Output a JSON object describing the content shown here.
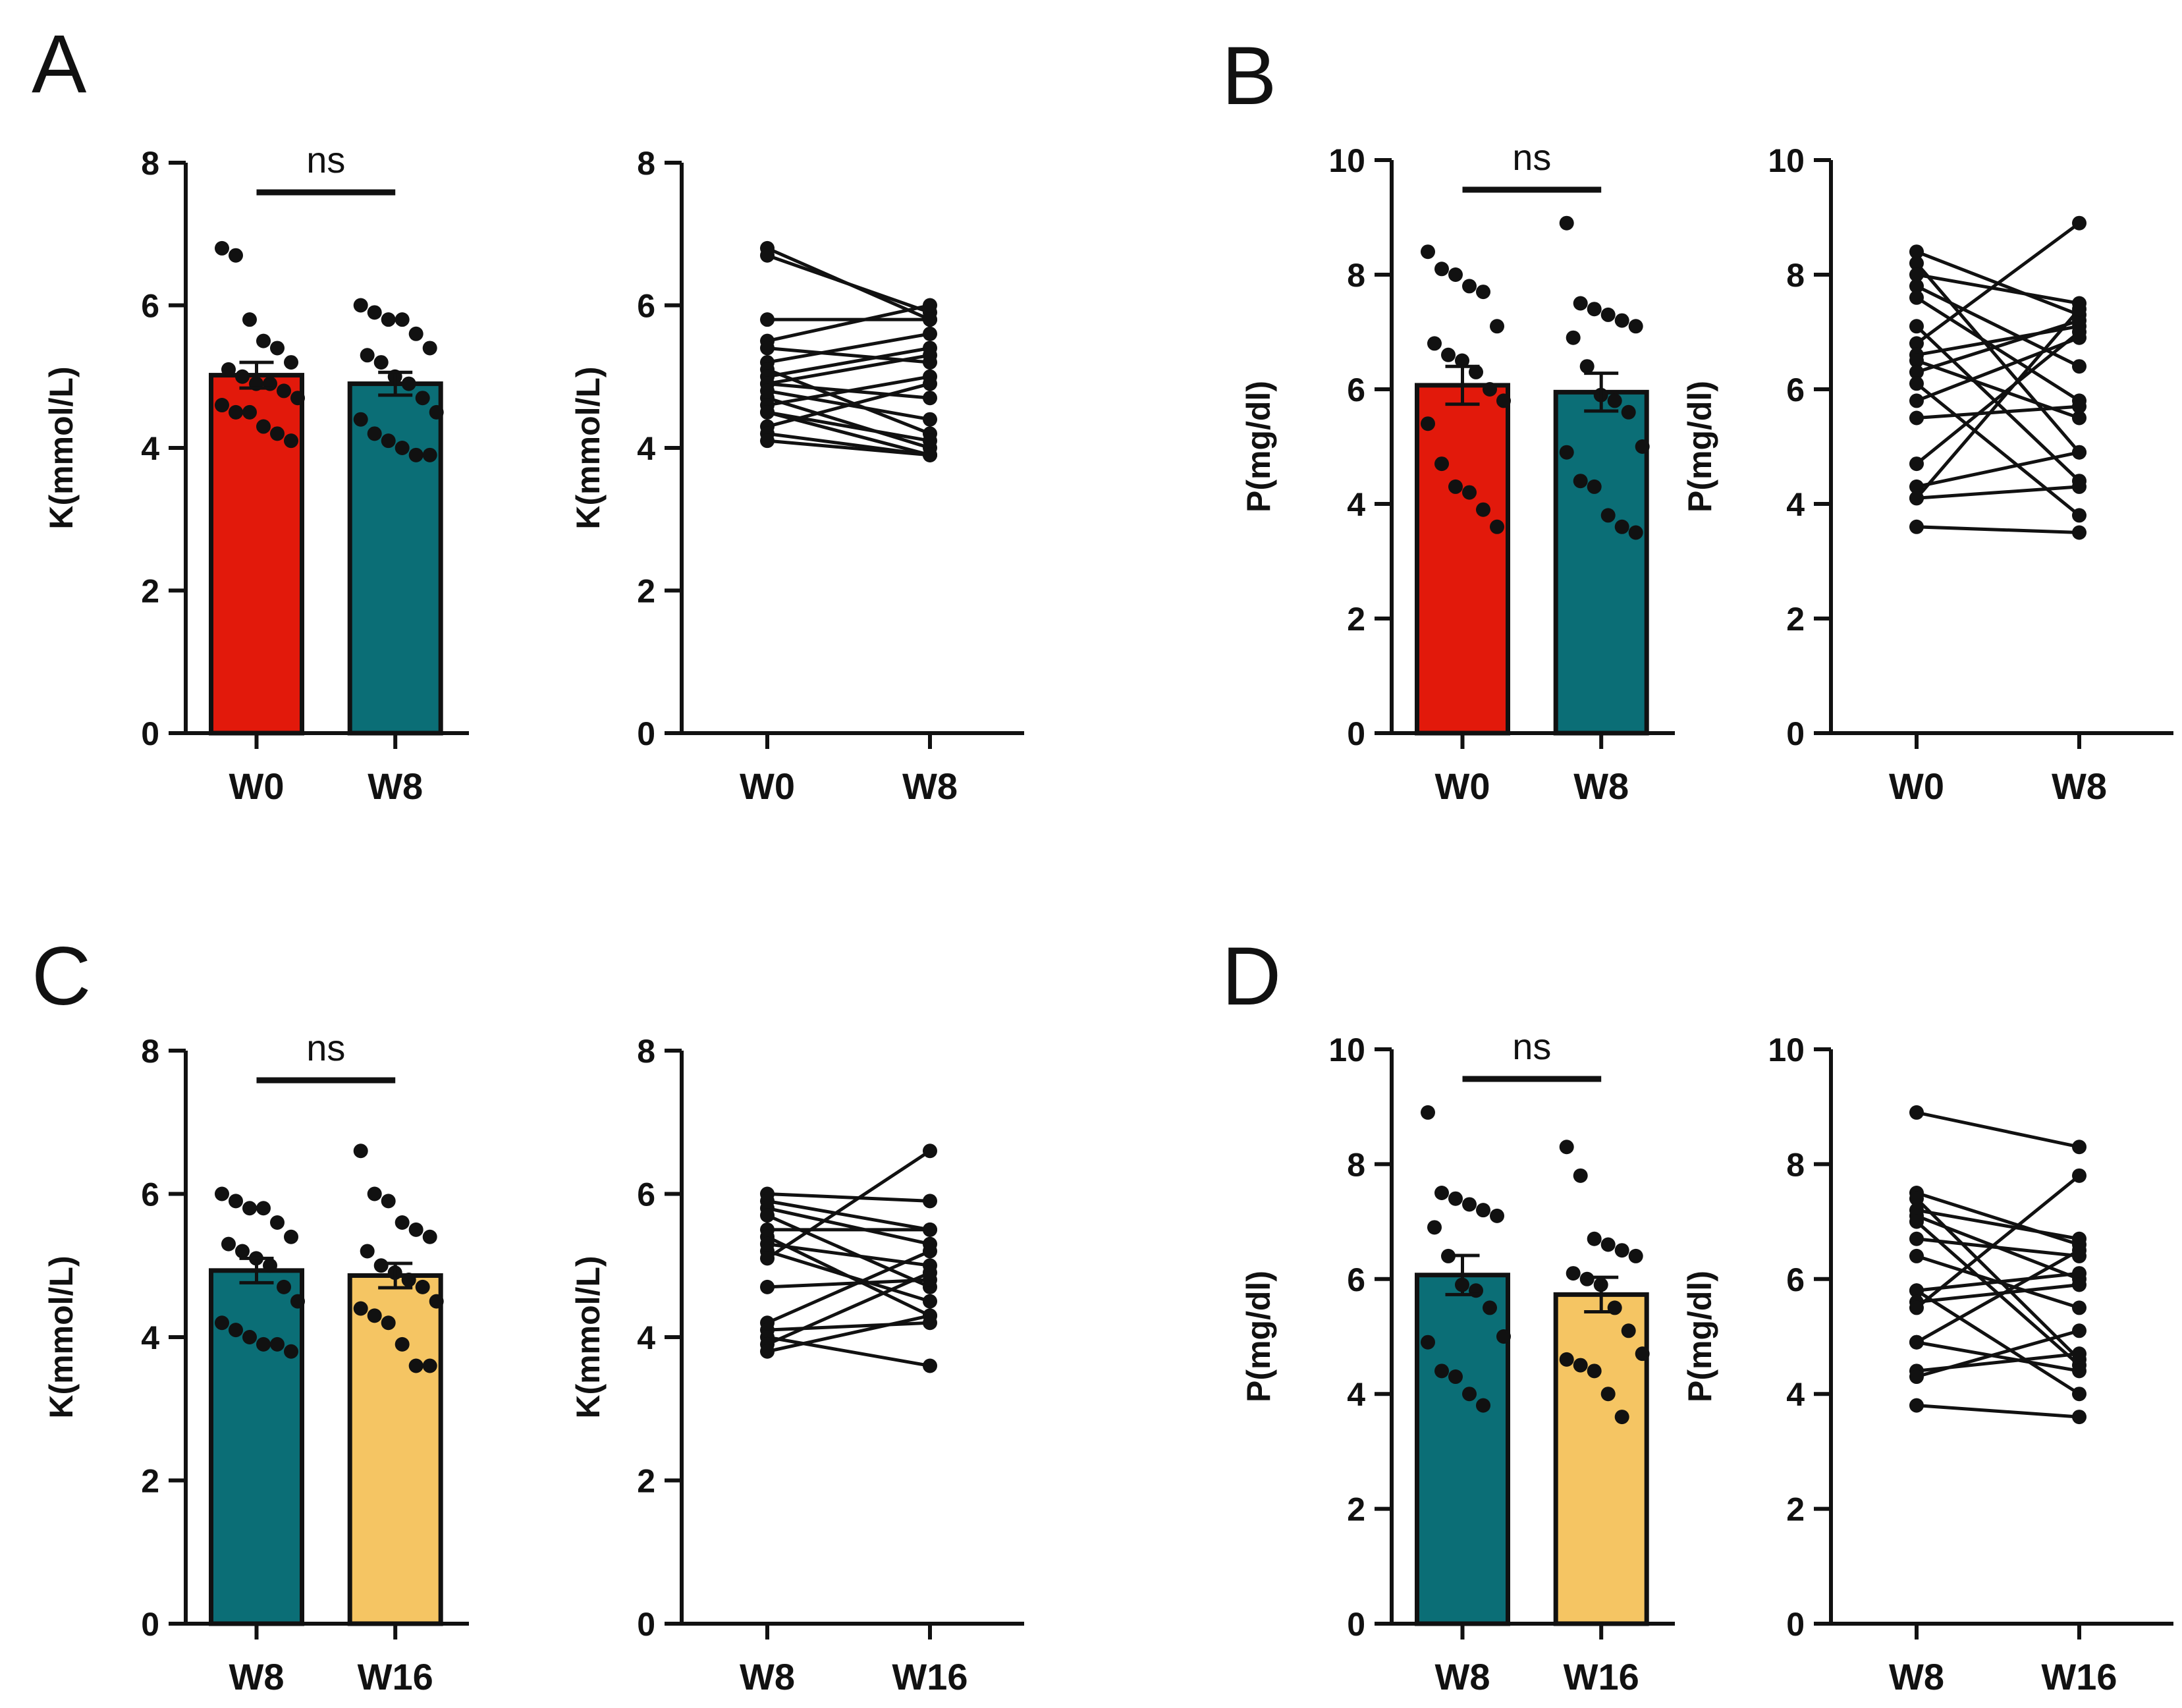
{
  "colors": {
    "red": "#e2190b",
    "teal": "#0b6e76",
    "yellow": "#f5c563",
    "ink": "#111111"
  },
  "chart_data": [
    {
      "panel": "A",
      "type": "bar",
      "ylabel": "K(mmol/L)",
      "categories": [
        "W0",
        "W8"
      ],
      "bar_colors": [
        "red",
        "teal"
      ],
      "ylim": [
        0,
        8
      ],
      "yticks": [
        0,
        2,
        4,
        6,
        8
      ],
      "means": [
        5.02,
        4.9
      ],
      "sem": [
        0.18,
        0.16
      ],
      "significance": "ns",
      "points": [
        [
          6.8,
          6.7,
          5.8,
          5.5,
          5.4,
          5.2,
          5.1,
          5.0,
          4.9,
          4.9,
          4.8,
          4.7,
          4.6,
          4.5,
          4.5,
          4.3,
          4.2,
          4.1
        ],
        [
          6.0,
          5.9,
          5.8,
          5.8,
          5.6,
          5.4,
          5.3,
          5.2,
          5.0,
          4.9,
          4.7,
          4.5,
          4.4,
          4.2,
          4.1,
          4.0,
          3.9,
          3.9
        ]
      ]
    },
    {
      "panel": "A",
      "type": "line",
      "ylabel": "K(mmol/L)",
      "categories": [
        "W0",
        "W8"
      ],
      "ylim": [
        0,
        8
      ],
      "yticks": [
        0,
        2,
        4,
        6,
        8
      ],
      "pairs": [
        [
          6.8,
          5.8
        ],
        [
          6.7,
          5.9
        ],
        [
          5.8,
          5.8
        ],
        [
          5.5,
          6.0
        ],
        [
          5.4,
          5.2
        ],
        [
          5.2,
          5.6
        ],
        [
          5.1,
          4.2
        ],
        [
          5.0,
          5.4
        ],
        [
          4.9,
          4.7
        ],
        [
          4.9,
          5.3
        ],
        [
          4.8,
          4.4
        ],
        [
          4.7,
          4.0
        ],
        [
          4.6,
          5.0
        ],
        [
          4.5,
          4.1
        ],
        [
          4.5,
          3.9
        ],
        [
          4.3,
          4.9
        ],
        [
          4.2,
          3.9
        ],
        [
          4.1,
          3.9
        ]
      ]
    },
    {
      "panel": "B",
      "type": "bar",
      "ylabel": "P(mg/dl)",
      "categories": [
        "W0",
        "W8"
      ],
      "bar_colors": [
        "red",
        "teal"
      ],
      "ylim": [
        0,
        10
      ],
      "yticks": [
        0,
        2,
        4,
        6,
        8,
        10
      ],
      "means": [
        6.07,
        5.95
      ],
      "sem": [
        0.33,
        0.33
      ],
      "significance": "ns",
      "points": [
        [
          8.4,
          8.1,
          8.0,
          7.8,
          7.7,
          7.1,
          6.8,
          6.6,
          6.5,
          6.3,
          6.0,
          5.8,
          5.4,
          4.7,
          4.3,
          4.2,
          3.9,
          3.6
        ],
        [
          8.9,
          7.5,
          7.4,
          7.3,
          7.2,
          7.1,
          6.9,
          6.4,
          5.9,
          5.8,
          5.6,
          5.0,
          4.9,
          4.4,
          4.3,
          3.8,
          3.6,
          3.5
        ]
      ]
    },
    {
      "panel": "B",
      "type": "line",
      "ylabel": "P(mg/dl)",
      "categories": [
        "W0",
        "W8"
      ],
      "ylim": [
        0,
        10
      ],
      "yticks": [
        0,
        2,
        4,
        6,
        8,
        10
      ],
      "pairs": [
        [
          8.4,
          7.3
        ],
        [
          8.2,
          4.9
        ],
        [
          8.0,
          7.5
        ],
        [
          7.8,
          6.4
        ],
        [
          7.6,
          5.8
        ],
        [
          7.1,
          4.4
        ],
        [
          6.8,
          8.9
        ],
        [
          6.6,
          7.1
        ],
        [
          6.5,
          5.5
        ],
        [
          6.3,
          7.2
        ],
        [
          6.1,
          3.8
        ],
        [
          5.8,
          6.9
        ],
        [
          5.5,
          5.7
        ],
        [
          4.7,
          7.0
        ],
        [
          4.3,
          4.9
        ],
        [
          4.1,
          7.4
        ],
        [
          4.1,
          4.3
        ],
        [
          3.6,
          3.5
        ]
      ]
    },
    {
      "panel": "C",
      "type": "bar",
      "ylabel": "K(mmol/L)",
      "categories": [
        "W8",
        "W16"
      ],
      "bar_colors": [
        "teal",
        "yellow"
      ],
      "ylim": [
        0,
        8
      ],
      "yticks": [
        0,
        2,
        4,
        6,
        8
      ],
      "means": [
        4.93,
        4.86
      ],
      "sem": [
        0.17,
        0.17
      ],
      "significance": "ns",
      "points": [
        [
          6.0,
          5.9,
          5.8,
          5.8,
          5.6,
          5.4,
          5.3,
          5.2,
          5.1,
          5.0,
          4.7,
          4.5,
          4.2,
          4.1,
          4.0,
          3.9,
          3.9,
          3.8
        ],
        [
          6.6,
          6.0,
          5.9,
          5.6,
          5.5,
          5.4,
          5.2,
          5.0,
          4.9,
          4.8,
          4.7,
          4.5,
          4.4,
          4.3,
          4.2,
          3.9,
          3.6,
          3.6
        ]
      ]
    },
    {
      "panel": "C",
      "type": "line",
      "ylabel": "K(mmol/L)",
      "categories": [
        "W8",
        "W16"
      ],
      "ylim": [
        0,
        8
      ],
      "yticks": [
        0,
        2,
        4,
        6,
        8
      ],
      "pairs": [
        [
          6.0,
          5.9
        ],
        [
          5.9,
          5.5
        ],
        [
          5.8,
          5.3
        ],
        [
          5.7,
          4.7
        ],
        [
          5.5,
          5.5
        ],
        [
          5.4,
          4.3
        ],
        [
          5.3,
          5.0
        ],
        [
          5.2,
          4.5
        ],
        [
          5.1,
          6.6
        ],
        [
          4.7,
          4.8
        ],
        [
          4.2,
          5.2
        ],
        [
          4.1,
          4.2
        ],
        [
          4.0,
          3.6
        ],
        [
          3.9,
          4.9
        ],
        [
          3.8,
          4.3
        ]
      ]
    },
    {
      "panel": "D",
      "type": "bar",
      "ylabel": "P(mg/dl)",
      "categories": [
        "W8",
        "W16"
      ],
      "bar_colors": [
        "teal",
        "yellow"
      ],
      "ylim": [
        0,
        10
      ],
      "yticks": [
        0,
        2,
        4,
        6,
        8,
        10
      ],
      "means": [
        6.07,
        5.73
      ],
      "sem": [
        0.34,
        0.3
      ],
      "significance": "ns",
      "points": [
        [
          8.9,
          7.5,
          7.4,
          7.3,
          7.2,
          7.1,
          6.9,
          6.4,
          5.9,
          5.8,
          5.5,
          5.0,
          4.9,
          4.4,
          4.3,
          4.0,
          3.8
        ],
        [
          8.3,
          7.8,
          6.7,
          6.6,
          6.5,
          6.4,
          6.1,
          6.0,
          5.9,
          5.5,
          5.1,
          4.7,
          4.6,
          4.5,
          4.4,
          4.0,
          3.6
        ]
      ]
    },
    {
      "panel": "D",
      "type": "line",
      "ylabel": "P(mg/dl)",
      "categories": [
        "W8",
        "W16"
      ],
      "ylim": [
        0,
        10
      ],
      "yticks": [
        0,
        2,
        4,
        6,
        8,
        10
      ],
      "pairs": [
        [
          8.9,
          8.3
        ],
        [
          7.5,
          6.6
        ],
        [
          7.4,
          4.6
        ],
        [
          7.2,
          6.7
        ],
        [
          7.1,
          6.0
        ],
        [
          7.0,
          4.5
        ],
        [
          6.7,
          6.4
        ],
        [
          6.4,
          5.5
        ],
        [
          5.8,
          6.1
        ],
        [
          5.8,
          4.0
        ],
        [
          5.6,
          5.9
        ],
        [
          5.5,
          7.8
        ],
        [
          4.9,
          4.4
        ],
        [
          4.9,
          6.5
        ],
        [
          4.4,
          4.7
        ],
        [
          4.3,
          5.1
        ],
        [
          3.8,
          3.6
        ]
      ]
    }
  ],
  "panels": [
    {
      "letter": "A"
    },
    {
      "letter": "B"
    },
    {
      "letter": "C"
    },
    {
      "letter": "D"
    }
  ]
}
